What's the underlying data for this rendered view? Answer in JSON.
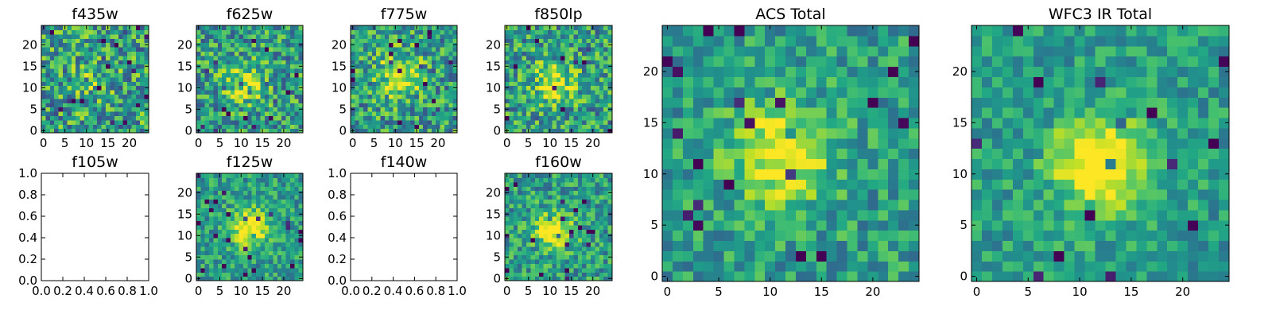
{
  "figure": {
    "colormap": "viridis",
    "background": "#ffffff",
    "axis_color": "#000000"
  },
  "chart_data": [
    {
      "type": "heatmap",
      "title": "f435w",
      "image": "f435w",
      "grid_size": 25,
      "centroid": [
        11,
        11
      ],
      "signal": 0.15,
      "noise": 0.55,
      "sigma": 4.0,
      "seed": 11,
      "xlim": [
        -0.5,
        24.5
      ],
      "ylim": [
        -0.5,
        24.5
      ],
      "xticks": [
        0,
        5,
        10,
        15,
        20
      ],
      "yticks": [
        0,
        5,
        10,
        15,
        20
      ],
      "xtick_labels": [
        "0",
        "5",
        "10",
        "15",
        "20"
      ],
      "ytick_labels": [
        "0",
        "5",
        "10",
        "15",
        "20"
      ]
    },
    {
      "type": "heatmap",
      "title": "f625w",
      "image": "f625w",
      "grid_size": 25,
      "centroid": [
        11,
        11
      ],
      "signal": 0.3,
      "noise": 0.5,
      "sigma": 3.5,
      "seed": 23,
      "xlim": [
        -0.5,
        24.5
      ],
      "ylim": [
        -0.5,
        24.5
      ],
      "xticks": [
        0,
        5,
        10,
        15,
        20
      ],
      "yticks": [
        0,
        5,
        10,
        15,
        20
      ],
      "xtick_labels": [
        "0",
        "5",
        "10",
        "15",
        "20"
      ],
      "ytick_labels": [
        "0",
        "5",
        "10",
        "15",
        "20"
      ]
    },
    {
      "type": "heatmap",
      "title": "f775w",
      "image": "f775w",
      "grid_size": 25,
      "centroid": [
        11,
        13
      ],
      "signal": 0.4,
      "noise": 0.5,
      "sigma": 3.5,
      "seed": 37,
      "xlim": [
        -0.5,
        24.5
      ],
      "ylim": [
        -0.5,
        24.5
      ],
      "xticks": [
        0,
        5,
        10,
        15,
        20
      ],
      "yticks": [
        0,
        5,
        10,
        15,
        20
      ],
      "xtick_labels": [
        "0",
        "5",
        "10",
        "15",
        "20"
      ],
      "ytick_labels": [
        "0",
        "5",
        "10",
        "15",
        "20"
      ]
    },
    {
      "type": "heatmap",
      "title": "f850lp",
      "image": "f850lp",
      "grid_size": 25,
      "centroid": [
        11,
        11
      ],
      "signal": 0.35,
      "noise": 0.5,
      "sigma": 3.5,
      "seed": 41,
      "xlim": [
        -0.5,
        24.5
      ],
      "ylim": [
        -0.5,
        24.5
      ],
      "xticks": [
        0,
        5,
        10,
        15,
        20
      ],
      "yticks": [
        0,
        5,
        10,
        15,
        20
      ],
      "xtick_labels": [
        "0",
        "5",
        "10",
        "15",
        "20"
      ],
      "ytick_labels": [
        "0",
        "5",
        "10",
        "15",
        "20"
      ]
    },
    {
      "type": "heatmap",
      "title": "f105w",
      "image": null,
      "xlim": [
        0,
        1
      ],
      "ylim": [
        0,
        1
      ],
      "xticks": [
        0,
        0.2,
        0.4,
        0.6,
        0.8,
        1.0
      ],
      "yticks": [
        0,
        0.2,
        0.4,
        0.6,
        0.8,
        1.0
      ],
      "xtick_labels": [
        "0.0",
        "0.2",
        "0.4",
        "0.6",
        "0.8",
        "1.0"
      ],
      "ytick_labels": [
        "0.0",
        "0.2",
        "0.4",
        "0.6",
        "0.8",
        "1.0"
      ]
    },
    {
      "type": "heatmap",
      "title": "f125w",
      "image": "f125w",
      "grid_size": 25,
      "centroid": [
        12,
        12
      ],
      "signal": 0.55,
      "noise": 0.35,
      "sigma": 3.0,
      "seed": 53,
      "xlim": [
        -0.5,
        24.5
      ],
      "ylim": [
        -0.5,
        24.5
      ],
      "xticks": [
        0,
        5,
        10,
        15,
        20
      ],
      "yticks": [
        0,
        5,
        10,
        15,
        20
      ],
      "xtick_labels": [
        "0",
        "5",
        "10",
        "15",
        "20"
      ],
      "ytick_labels": [
        "0",
        "5",
        "10",
        "15",
        "20"
      ]
    },
    {
      "type": "heatmap",
      "title": "f140w",
      "image": null,
      "xlim": [
        0,
        1
      ],
      "ylim": [
        0,
        1
      ],
      "xticks": [
        0,
        0.2,
        0.4,
        0.6,
        0.8,
        1.0
      ],
      "yticks": [
        0,
        0.2,
        0.4,
        0.6,
        0.8,
        1.0
      ],
      "xtick_labels": [
        "0.0",
        "0.2",
        "0.4",
        "0.6",
        "0.8",
        "1.0"
      ],
      "ytick_labels": [
        "0.0",
        "0.2",
        "0.4",
        "0.6",
        "0.8",
        "1.0"
      ]
    },
    {
      "type": "heatmap",
      "title": "f160w",
      "image": "f160w",
      "grid_size": 25,
      "centroid": [
        11,
        11
      ],
      "signal": 0.5,
      "noise": 0.4,
      "sigma": 3.0,
      "seed": 67,
      "xlim": [
        -0.5,
        24.5
      ],
      "ylim": [
        -0.5,
        24.5
      ],
      "xticks": [
        0,
        5,
        10,
        15,
        20
      ],
      "yticks": [
        0,
        5,
        10,
        15,
        20
      ],
      "xtick_labels": [
        "0",
        "5",
        "10",
        "15",
        "20"
      ],
      "ytick_labels": [
        "0",
        "5",
        "10",
        "15",
        "20"
      ]
    },
    {
      "type": "heatmap",
      "title": "ACS Total",
      "image": "acs_total",
      "grid_size": 25,
      "centroid": [
        11,
        12
      ],
      "signal": 0.5,
      "noise": 0.35,
      "sigma": 3.2,
      "seed": 79,
      "xlim": [
        -0.5,
        24.5
      ],
      "ylim": [
        -0.5,
        24.5
      ],
      "xticks": [
        0,
        5,
        10,
        15,
        20
      ],
      "yticks": [
        0,
        5,
        10,
        15,
        20
      ],
      "xtick_labels": [
        "0",
        "5",
        "10",
        "15",
        "20"
      ],
      "ytick_labels": [
        "0",
        "5",
        "10",
        "15",
        "20"
      ]
    },
    {
      "type": "heatmap",
      "title": "WFC3 IR Total",
      "image": "wfc3_ir_total",
      "grid_size": 25,
      "centroid": [
        12,
        11
      ],
      "signal": 0.65,
      "noise": 0.3,
      "sigma": 3.0,
      "seed": 97,
      "xlim": [
        -0.5,
        24.5
      ],
      "ylim": [
        -0.5,
        24.5
      ],
      "xticks": [
        0,
        5,
        10,
        15,
        20
      ],
      "yticks": [
        0,
        5,
        10,
        15,
        20
      ],
      "xtick_labels": [
        "0",
        "5",
        "10",
        "15",
        "20"
      ],
      "ytick_labels": [
        "0",
        "5",
        "10",
        "15",
        "20"
      ]
    }
  ]
}
